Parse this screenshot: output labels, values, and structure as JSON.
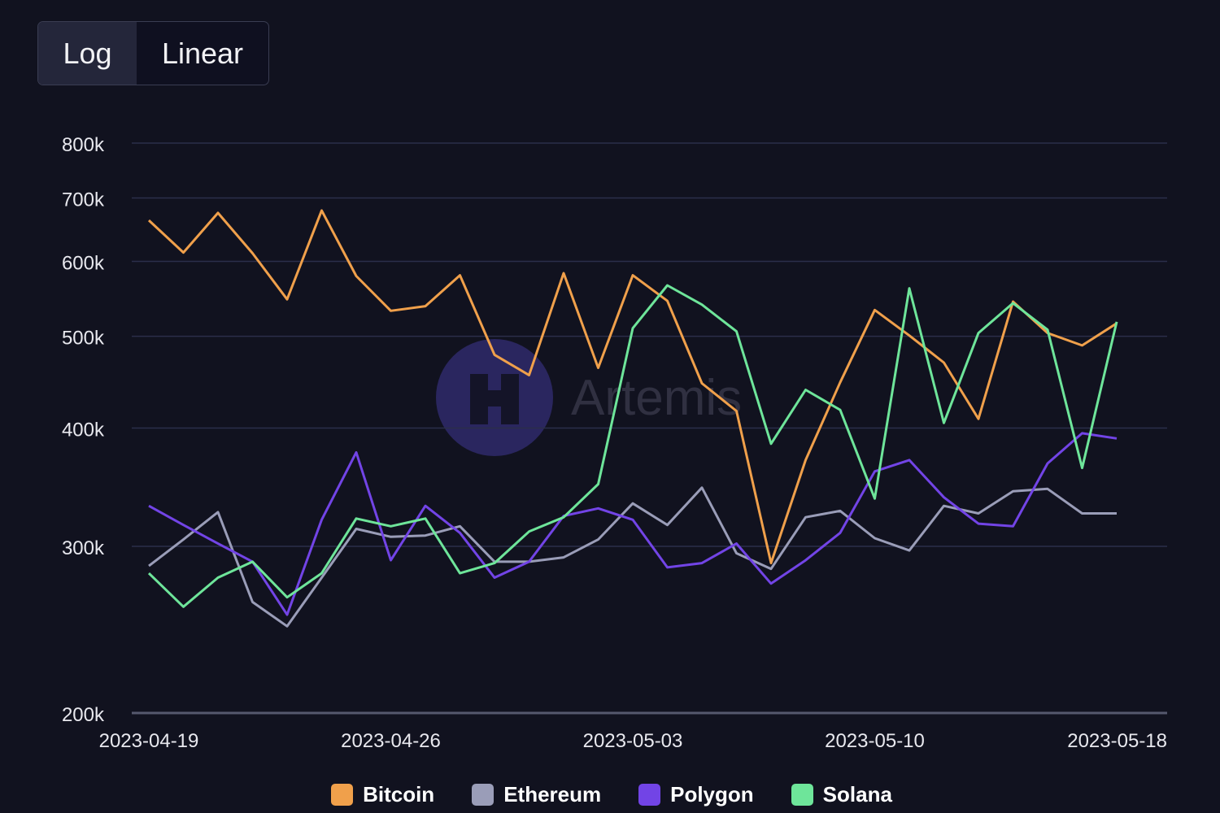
{
  "scale_toggle": {
    "options": [
      "Log",
      "Linear"
    ],
    "selected": "Log"
  },
  "watermark": "Artemis",
  "chart_data": {
    "type": "line",
    "yscale": "log",
    "ylim": [
      200000,
      800000
    ],
    "yticks": [
      200000,
      300000,
      400000,
      500000,
      600000,
      700000,
      800000
    ],
    "ytick_labels": [
      "200k",
      "300k",
      "400k",
      "500k",
      "600k",
      "700k",
      "800k"
    ],
    "xtick_labels": [
      "2023-04-19",
      "2023-04-26",
      "2023-05-03",
      "2023-05-10",
      "2023-05-18"
    ],
    "grid": true,
    "legend_position": "bottom",
    "x": [
      "2023-04-19",
      "2023-04-20",
      "2023-04-21",
      "2023-04-22",
      "2023-04-23",
      "2023-04-24",
      "2023-04-25",
      "2023-04-26",
      "2023-04-27",
      "2023-04-28",
      "2023-04-29",
      "2023-04-30",
      "2023-05-01",
      "2023-05-02",
      "2023-05-03",
      "2023-05-04",
      "2023-05-05",
      "2023-05-06",
      "2023-05-07",
      "2023-05-08",
      "2023-05-09",
      "2023-05-10",
      "2023-05-11",
      "2023-05-12",
      "2023-05-13",
      "2023-05-14",
      "2023-05-15",
      "2023-05-16",
      "2023-05-17"
    ],
    "series": [
      {
        "name": "Bitcoin",
        "color": "#f0a04b",
        "values": [
          663000,
          613000,
          675000,
          612000,
          547000,
          679000,
          579000,
          532000,
          538000,
          580000,
          478000,
          455000,
          583000,
          463000,
          580000,
          545000,
          446000,
          417000,
          288000,
          370000,
          447000,
          533000,
          501000,
          469000,
          409000,
          544000,
          504000,
          489000,
          516000
        ]
      },
      {
        "name": "Ethereum",
        "color": "#9a9db8",
        "values": [
          286000,
          305000,
          326000,
          262000,
          247000,
          278000,
          313000,
          307000,
          308000,
          315000,
          289000,
          289000,
          292000,
          305000,
          333000,
          316000,
          346000,
          295000,
          284000,
          322000,
          327000,
          306000,
          297000,
          331000,
          325000,
          343000,
          345000,
          325000,
          325000
        ]
      },
      {
        "name": "Polygon",
        "color": "#7244e6",
        "values": [
          331000,
          316000,
          302000,
          289000,
          254000,
          320000,
          377000,
          290000,
          331000,
          310000,
          278000,
          289000,
          323000,
          329000,
          320000,
          285000,
          288000,
          302000,
          274000,
          290000,
          310000,
          360000,
          370000,
          338000,
          317000,
          315000,
          367000,
          395000,
          390000
        ]
      },
      {
        "name": "Solana",
        "color": "#6ee59a",
        "values": [
          281000,
          259000,
          278000,
          289000,
          265000,
          281000,
          321000,
          315000,
          321000,
          281000,
          288000,
          311000,
          322000,
          349000,
          510000,
          566000,
          540000,
          506000,
          385000,
          439000,
          418000,
          337000,
          562000,
          405000,
          504000,
          542000,
          508000,
          363000,
          518000
        ]
      }
    ]
  }
}
